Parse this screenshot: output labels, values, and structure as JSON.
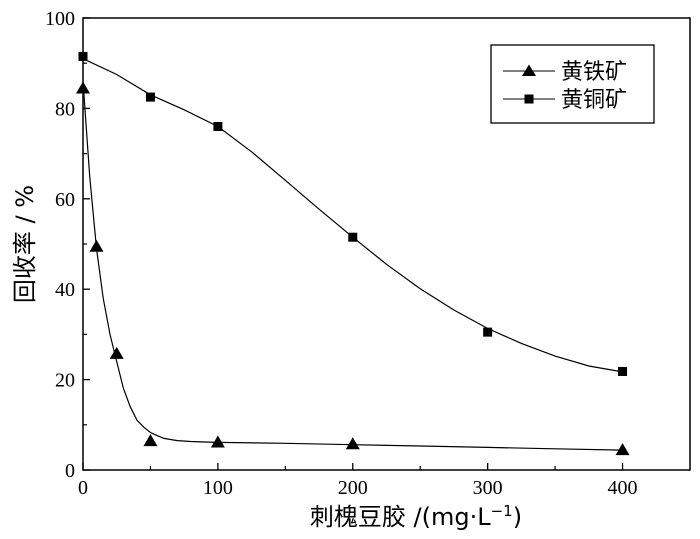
{
  "chart_data": {
    "type": "scatter",
    "xlabel": "刺槐豆胶 /(mg·L",
    "xlabel_sup": "−1",
    "xlabel_close": ")",
    "ylabel": "回收率 / %",
    "xlim": [
      0,
      450
    ],
    "ylim": [
      0,
      100
    ],
    "xticks": [
      0,
      100,
      200,
      300,
      400
    ],
    "yticks": [
      0,
      20,
      40,
      60,
      80,
      100
    ],
    "grid": false,
    "legend_position": "top-right",
    "series": [
      {
        "name": "黄铁矿",
        "marker": "triangle",
        "x": [
          0,
          10,
          25,
          50,
          100,
          200,
          400
        ],
        "y": [
          84.5,
          49.5,
          25.8,
          6.5,
          6.2,
          5.8,
          4.5
        ],
        "curve_x": [
          0,
          5,
          10,
          15,
          20,
          25,
          30,
          35,
          40,
          45,
          50,
          55,
          60,
          70,
          80,
          90,
          100,
          150,
          200,
          250,
          300,
          350,
          400
        ],
        "curve_y": [
          86,
          65,
          49,
          38,
          30,
          24,
          18,
          14,
          11,
          9.5,
          8.3,
          7.6,
          7.0,
          6.5,
          6.3,
          6.2,
          6.1,
          5.9,
          5.6,
          5.3,
          5.0,
          4.7,
          4.4
        ]
      },
      {
        "name": "黄铜矿",
        "marker": "square",
        "x": [
          0,
          50,
          100,
          200,
          300,
          400
        ],
        "y": [
          91.5,
          82.5,
          76,
          51.5,
          30.5,
          21.8
        ],
        "curve_x": [
          0,
          25,
          50,
          75,
          100,
          125,
          150,
          175,
          200,
          225,
          250,
          275,
          300,
          325,
          350,
          375,
          400
        ],
        "curve_y": [
          91,
          87.5,
          83,
          79.7,
          76,
          70.4,
          64.1,
          57.7,
          51.5,
          45.5,
          40.1,
          35.4,
          31.3,
          28,
          25.2,
          23,
          21.7
        ]
      }
    ]
  }
}
